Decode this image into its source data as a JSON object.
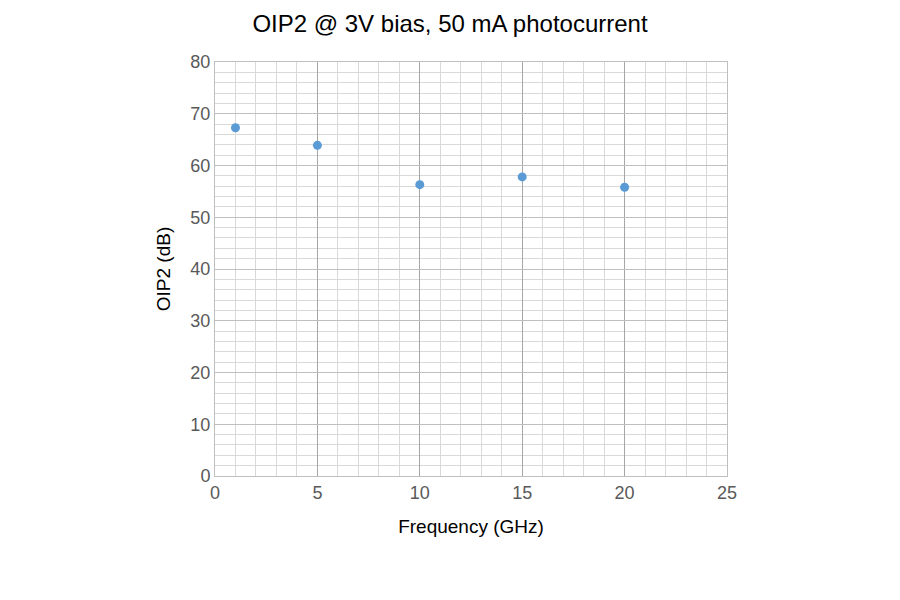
{
  "chart_data": {
    "type": "scatter",
    "title": "OIP2 @ 3V bias, 50 mA photocurrent",
    "x_label": "Frequency (GHz)",
    "y_label": "OIP2 (dB)",
    "x": [
      1,
      5,
      10,
      15,
      20
    ],
    "values": [
      67.3,
      63.9,
      56.3,
      57.8,
      55.8
    ],
    "color": "#5b9bd5",
    "marker": "circle",
    "xlim": [
      0,
      25
    ],
    "xticks": [
      0,
      5,
      10,
      15,
      20,
      25
    ],
    "ylim": [
      0,
      80
    ],
    "yticks": [
      0,
      10,
      20,
      30,
      40,
      50,
      60,
      70,
      80
    ],
    "grid": true
  }
}
